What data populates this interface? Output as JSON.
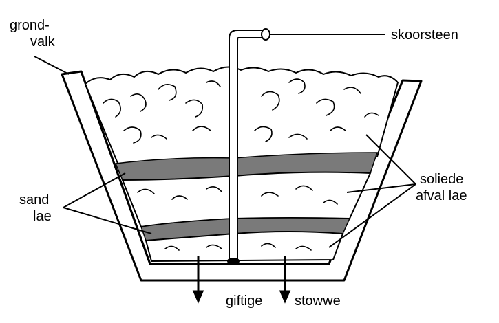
{
  "labels": {
    "grondvalk_line1": "grond-",
    "grondvalk_line2": "valk",
    "skoorsteen": "skoorsteen",
    "sand_line1": "sand",
    "sand_line2": "lae",
    "soliede_line1": "soliede",
    "soliede_line2": "afval lae",
    "giftige": "giftige",
    "stowwe": "stowwe"
  },
  "colors": {
    "outline": "#000000",
    "sand_layer": "#7a7a7a",
    "waste_fill": "#ffffff",
    "wall_fill": "#ffffff"
  }
}
